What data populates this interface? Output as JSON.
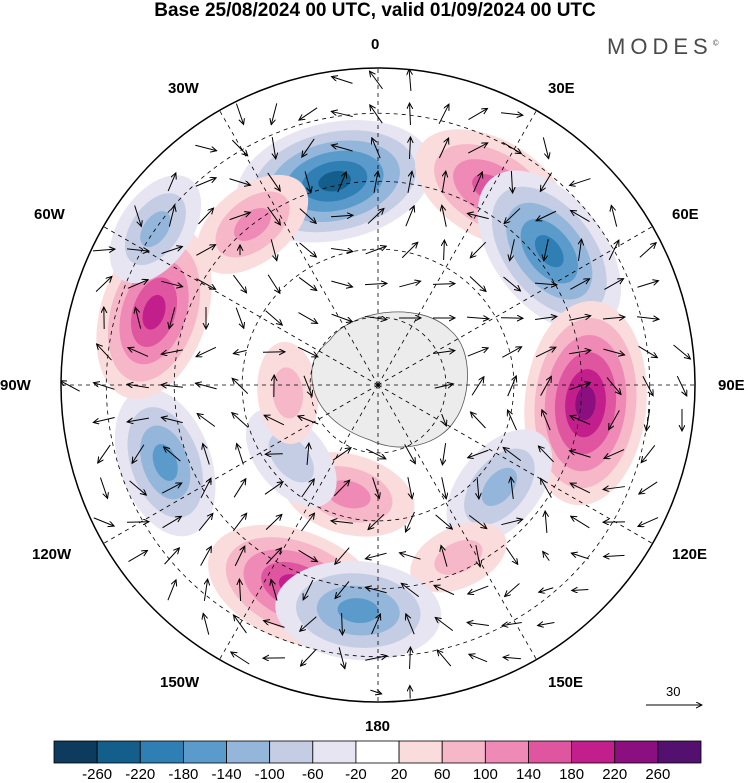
{
  "title": "Base 25/08/2024 00 UTC, valid 01/09/2024 00 UTC",
  "brand": "MODES",
  "brand_mark": "©",
  "longitude_labels": {
    "n0": "0",
    "n30e": "30E",
    "n60e": "60E",
    "n90e": "90E",
    "n120e": "120E",
    "n150e": "150E",
    "n180": "180",
    "n150w": "150W",
    "n120w": "120W",
    "n90w": "90W",
    "n60w": "60W",
    "n30w": "30W"
  },
  "reference_vector": "30",
  "colorbar": {
    "colors": [
      "#0d3b5e",
      "#135e8a",
      "#2f7fb5",
      "#5b9bcb",
      "#93b6da",
      "#c5cde4",
      "#e6e5f1",
      "#ffffff",
      "#fbdcdc",
      "#f6b7c8",
      "#ee8ab5",
      "#e0559f",
      "#c21f8c",
      "#8b0f7f",
      "#54106f"
    ],
    "labels": [
      "-260",
      "-220",
      "-180",
      "-140",
      "-100",
      "-60",
      "-20",
      "20",
      "60",
      "100",
      "140",
      "180",
      "220",
      "260"
    ]
  },
  "anomaly_cells": [
    {
      "lon": -12,
      "lat": -44,
      "value": -220
    },
    {
      "lon": 30,
      "lat": -40,
      "value": 170
    },
    {
      "lon": 52,
      "lat": -42,
      "value": -200
    },
    {
      "lon": 95,
      "lat": -44,
      "value": 230
    },
    {
      "lon": 130,
      "lat": -55,
      "value": -120
    },
    {
      "lon": 155,
      "lat": -48,
      "value": 70
    },
    {
      "lon": -158,
      "lat": -42,
      "value": 200
    },
    {
      "lon": -175,
      "lat": -40,
      "value": -170
    },
    {
      "lon": -110,
      "lat": -40,
      "value": -150
    },
    {
      "lon": -72,
      "lat": -38,
      "value": 190
    },
    {
      "lon": -55,
      "lat": -30,
      "value": -100
    },
    {
      "lon": -38,
      "lat": -45,
      "value": 110
    },
    {
      "lon": -165,
      "lat": -65,
      "value": 120
    },
    {
      "lon": -130,
      "lat": -65,
      "value": -90
    },
    {
      "lon": -95,
      "lat": -70,
      "value": 70
    }
  ]
}
